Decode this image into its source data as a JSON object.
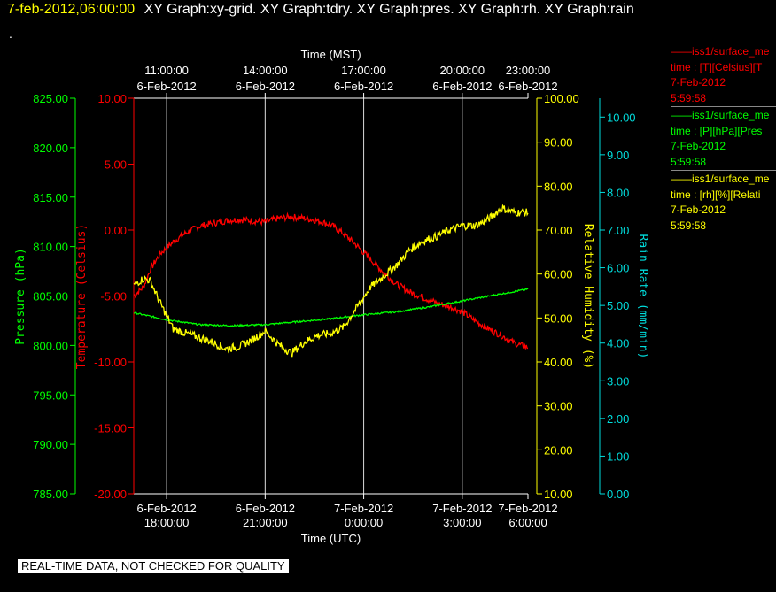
{
  "header": {
    "timestamp": "7-feb-2012,06:00:00",
    "titles": "XY Graph:xy-grid.  XY Graph:tdry.  XY Graph:pres.  XY Graph:rh.  XY Graph:rain",
    "dot": "."
  },
  "footer": "REAL-TIME DATA, NOT CHECKED FOR QUALITY",
  "legend": [
    {
      "line1": "——iss1/surface_me",
      "line2": "time : [T][Celsius][T",
      "line3": "7-Feb-2012",
      "line4": "5:59:58",
      "color": "#ff0000"
    },
    {
      "line1": "——iss1/surface_me",
      "line2": "time : [P][hPa][Pres",
      "line3": "7-Feb-2012",
      "line4": "5:59:58",
      "color": "#00ff00"
    },
    {
      "line1": "——iss1/surface_me",
      "line2": "time : [rh][%][Relati",
      "line3": "7-Feb-2012",
      "line4": "5:59:58",
      "color": "#ffff00"
    }
  ],
  "chart_data": {
    "type": "line",
    "x_top_label": "Time (MST)",
    "x_bottom_label": "Time (UTC)",
    "xlim": [
      0,
      12
    ],
    "x_ticks": [
      1,
      4,
      7,
      10,
      12
    ],
    "x_bottom_tick_labels": [
      [
        "6-Feb-2012",
        "18:00:00"
      ],
      [
        "6-Feb-2012",
        "21:00:00"
      ],
      [
        "7-Feb-2012",
        "0:00:00"
      ],
      [
        "7-Feb-2012",
        "3:00:00"
      ],
      [
        "7-Feb-2012",
        "6:00:00"
      ]
    ],
    "x_top_tick_labels": [
      [
        "11:00:00",
        "6-Feb-2012"
      ],
      [
        "14:00:00",
        "6-Feb-2012"
      ],
      [
        "17:00:00",
        "6-Feb-2012"
      ],
      [
        "20:00:00",
        "6-Feb-2012"
      ],
      [
        "23:00:00",
        "6-Feb-2012"
      ]
    ],
    "grid": true,
    "axes": [
      {
        "id": "pres",
        "label": "Pressure (hPa)",
        "color": "#00ff00",
        "ylim": [
          785,
          825
        ],
        "ticks": [
          "785.00",
          "790.00",
          "795.00",
          "800.00",
          "805.00",
          "810.00",
          "815.00",
          "820.00",
          "825.00"
        ]
      },
      {
        "id": "temp",
        "label": "Temperature (Celsius)",
        "color": "#ff0000",
        "ylim": [
          -20,
          10
        ],
        "ticks": [
          "-20.00",
          "-15.00",
          "-10.00",
          "-5.00",
          "0.00",
          "5.00",
          "10.00"
        ]
      },
      {
        "id": "rh",
        "label": "Relative Humidity (%)",
        "color": "#ffff00",
        "ylim": [
          10,
          100
        ],
        "ticks": [
          "10.00",
          "20.00",
          "30.00",
          "40.00",
          "50.00",
          "60.00",
          "70.00",
          "80.00",
          "90.00",
          "100.00"
        ]
      },
      {
        "id": "rain",
        "label": "Rain Rate (mm/min)",
        "color": "#00dddd",
        "ylim": [
          0,
          10.5
        ],
        "ticks": [
          "0.00",
          "1.00",
          "2.00",
          "3.00",
          "4.00",
          "5.00",
          "6.00",
          "7.00",
          "8.00",
          "9.00",
          "10.00"
        ]
      }
    ],
    "series": [
      {
        "axis": "temp",
        "color": "#ff0000",
        "noise": 0.25,
        "x": [
          0,
          0.3,
          0.5,
          0.8,
          1.2,
          1.6,
          2.0,
          2.4,
          2.8,
          3.2,
          3.6,
          4.0,
          4.4,
          4.8,
          5.2,
          5.6,
          6.0,
          6.4,
          6.8,
          7.2,
          7.6,
          8.0,
          8.4,
          8.8,
          9.2,
          9.6,
          10.0,
          10.4,
          10.8,
          11.2,
          11.6,
          12.0
        ],
        "y": [
          -5.0,
          -4.3,
          -3.0,
          -1.8,
          -0.9,
          -0.2,
          0.3,
          0.5,
          0.7,
          0.8,
          0.7,
          0.6,
          0.9,
          1.0,
          0.9,
          0.7,
          0.4,
          -0.3,
          -1.2,
          -2.2,
          -3.2,
          -4.1,
          -4.7,
          -5.1,
          -5.5,
          -5.8,
          -6.2,
          -6.9,
          -7.5,
          -8.0,
          -8.6,
          -8.9
        ]
      },
      {
        "axis": "pres",
        "color": "#00ff00",
        "noise": 0.08,
        "x": [
          0,
          1,
          2,
          3,
          4,
          5,
          6,
          7,
          8,
          9,
          10,
          11,
          12
        ],
        "y": [
          803.3,
          802.6,
          802.1,
          802.0,
          802.1,
          802.4,
          802.7,
          803.1,
          803.4,
          803.9,
          804.5,
          805.1,
          805.7
        ]
      },
      {
        "axis": "rh",
        "color": "#ffff00",
        "noise": 0.9,
        "x": [
          0,
          0.3,
          0.5,
          0.8,
          1.2,
          1.6,
          2.0,
          2.4,
          2.8,
          3.2,
          3.6,
          4.0,
          4.4,
          4.8,
          5.2,
          5.6,
          6.0,
          6.4,
          6.8,
          7.2,
          7.6,
          8.0,
          8.4,
          8.8,
          9.2,
          9.6,
          10.0,
          10.4,
          10.8,
          11.2,
          11.6,
          12.0
        ],
        "y": [
          57.5,
          59.0,
          58.5,
          53.5,
          47.5,
          46.5,
          45.5,
          44.5,
          43.0,
          43.5,
          45.0,
          47.0,
          44.0,
          42.0,
          44.5,
          46.0,
          46.5,
          48.0,
          52.5,
          57.0,
          59.5,
          62.0,
          65.5,
          67.5,
          68.5,
          70.0,
          71.0,
          71.0,
          72.5,
          75.0,
          74.0,
          74.0
        ]
      }
    ]
  }
}
